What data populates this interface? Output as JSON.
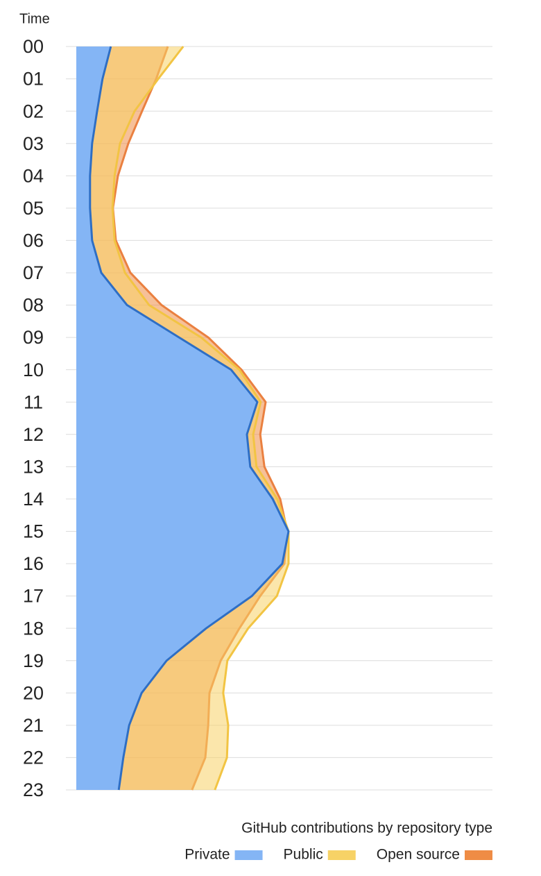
{
  "chart_data": {
    "type": "area",
    "orientation": "vertical",
    "title": "GitHub contributions by repository type",
    "y_label": "Time",
    "categories": [
      "00",
      "01",
      "02",
      "03",
      "04",
      "05",
      "06",
      "07",
      "08",
      "09",
      "10",
      "11",
      "12",
      "13",
      "14",
      "15",
      "16",
      "17",
      "18",
      "19",
      "20",
      "21",
      "22",
      "23"
    ],
    "xlim": [
      0,
      100
    ],
    "grid": true,
    "legend": "bottom-right",
    "series": [
      {
        "name": "Private",
        "color": "#84b5f5",
        "line_color": "#2e6ec4",
        "values": [
          8.3,
          6.3,
          5,
          3.8,
          3.3,
          3.3,
          3.8,
          6,
          12.2,
          24.7,
          37.2,
          43.5,
          41,
          41.8,
          47.2,
          51,
          49.5,
          42.2,
          31.2,
          21.7,
          15.7,
          12.7,
          11.3,
          10.2
        ]
      },
      {
        "name": "Public",
        "color": "#f7d266",
        "line_color": "#f2c443",
        "values": [
          25.7,
          19.7,
          14,
          10.5,
          9.2,
          8.7,
          9.2,
          11.7,
          17.5,
          30,
          39.2,
          44.3,
          42.5,
          43.3,
          48.3,
          51,
          51,
          48.2,
          41.3,
          36.3,
          35.3,
          36.5,
          36.2,
          33.3
        ]
      },
      {
        "name": "Open source",
        "color": "#ef8c45",
        "line_color": "#ea8040",
        "values": [
          22,
          19.2,
          15.8,
          12.5,
          10,
          8.8,
          9.5,
          13,
          20.5,
          31.7,
          39.7,
          45.5,
          44.2,
          45.2,
          49,
          50.7,
          50,
          44.2,
          39.2,
          34.7,
          32,
          31.7,
          31,
          27.8
        ]
      }
    ]
  }
}
